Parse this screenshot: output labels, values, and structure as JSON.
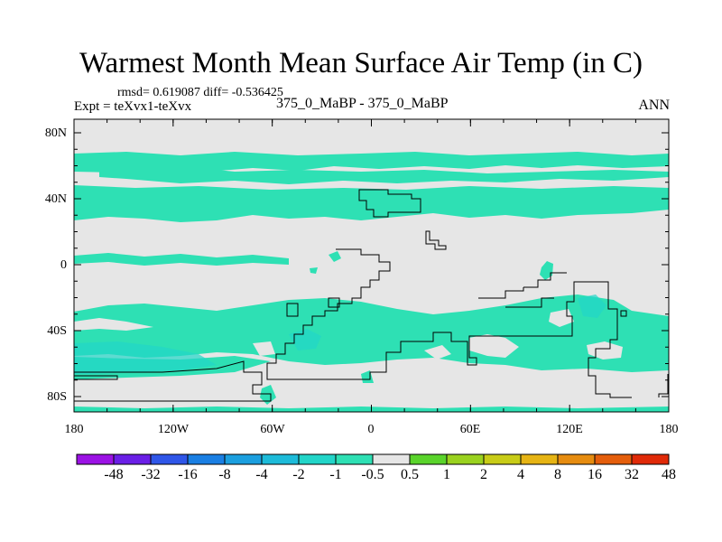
{
  "figure": {
    "title": "Warmest Month Mean Surface Air Temp (in C)",
    "stats_line": "rmsd= 0.619087 diff= -0.536425",
    "expt_line": "Expt = teXvx1-teXvx",
    "center_label": "375_0_MaBP - 375_0_MaBP",
    "season_label": "ANN"
  },
  "axes": {
    "y_ticks": [
      "80N",
      "40N",
      "0",
      "40S",
      "80S"
    ],
    "x_ticks": [
      "180",
      "120W",
      "60W",
      "0",
      "60E",
      "120E",
      "180"
    ]
  },
  "colorbar": {
    "labels": [
      "-48",
      "-32",
      "-16",
      "-8",
      "-4",
      "-2",
      "-1",
      "-0.5",
      "0.5",
      "1",
      "2",
      "4",
      "8",
      "16",
      "32",
      "48"
    ],
    "colors": [
      "#9b12e4",
      "#6a1fe6",
      "#2f56e8",
      "#1a7fe3",
      "#1b9fdf",
      "#1dbbd9",
      "#22d5c8",
      "#2ee0b4",
      "#e6e6e6",
      "#5ad42b",
      "#9ad21f",
      "#c8cc17",
      "#e6b414",
      "#e68c10",
      "#e45e0c",
      "#e02a08"
    ]
  },
  "map": {
    "background_color": "#e6e6e6",
    "anomaly_color": "#2ee0b4",
    "deep_anomaly_color": "#22d5c8",
    "coast_color": "#000000"
  }
}
